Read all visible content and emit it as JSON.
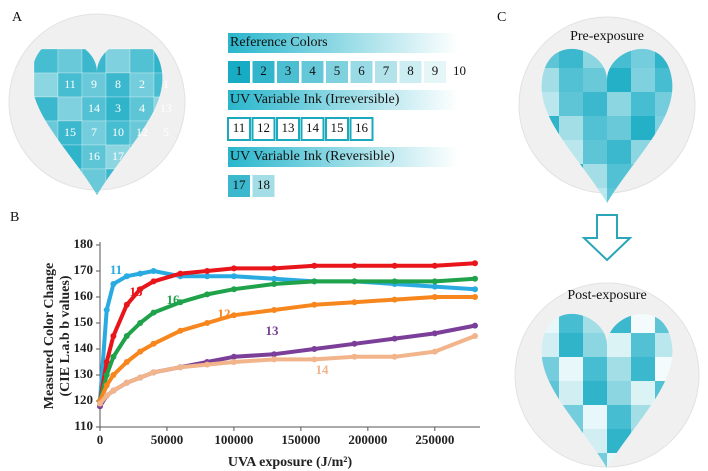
{
  "panel_a": {
    "label": "A",
    "heart_cells": [
      {
        "text": "11",
        "col": 0,
        "row": 0
      },
      {
        "text": "9",
        "col": 1,
        "row": 0
      },
      {
        "text": "8",
        "col": 2,
        "row": 0
      },
      {
        "text": "2",
        "col": 3,
        "row": 0
      },
      {
        "text": "1",
        "col": 4,
        "row": 0
      },
      {
        "text": "14",
        "col": 1,
        "row": 1
      },
      {
        "text": "3",
        "col": 2,
        "row": 1
      },
      {
        "text": "4",
        "col": 3,
        "row": 1
      },
      {
        "text": "13",
        "col": 4,
        "row": 1
      },
      {
        "text": "15",
        "col": 0,
        "row": 2
      },
      {
        "text": "7",
        "col": 1,
        "row": 2
      },
      {
        "text": "10",
        "col": 2,
        "row": 2
      },
      {
        "text": "12",
        "col": 3,
        "row": 2
      },
      {
        "text": "5",
        "col": 4,
        "row": 2
      },
      {
        "text": "16",
        "col": 1,
        "row": 3
      },
      {
        "text": "17",
        "col": 2,
        "row": 3
      }
    ],
    "groups": [
      {
        "title": "Reference Colors",
        "items": [
          "1",
          "2",
          "3",
          "4",
          "5",
          "6",
          "7",
          "8",
          "9",
          "10"
        ]
      },
      {
        "title": "UV Variable Ink (Irreversible)",
        "items": [
          "11",
          "12",
          "13",
          "14",
          "15",
          "16"
        ]
      },
      {
        "title": "UV Variable Ink (Reversible)",
        "items": [
          "17",
          "18"
        ]
      }
    ]
  },
  "panel_b": {
    "label": "B"
  },
  "chart_data": {
    "type": "scatter",
    "y_label": [
      "Measured Color Change",
      "(CIE L.a.b b values)"
    ],
    "x_label": "UVA exposure (J/m²)",
    "x": [
      0,
      5000,
      10000,
      20000,
      30000,
      40000,
      60000,
      80000,
      100000,
      130000,
      160000,
      190000,
      220000,
      250000,
      280000
    ],
    "series": [
      {
        "name": "11",
        "color": "#29abe2",
        "values": [
          120,
          155,
          165,
          168,
          169,
          170,
          168,
          168,
          168,
          167,
          166,
          166,
          165,
          164,
          163
        ]
      },
      {
        "name": "15",
        "color": "#e8151b",
        "values": [
          120,
          135,
          145,
          157,
          163,
          166,
          169,
          170,
          171,
          171,
          172,
          172,
          172,
          172,
          173
        ]
      },
      {
        "name": "16",
        "color": "#1fa24a",
        "values": [
          120,
          130,
          137,
          145,
          150,
          154,
          158,
          161,
          163,
          165,
          166,
          166,
          166,
          166,
          167
        ]
      },
      {
        "name": "12",
        "color": "#f7861e",
        "values": [
          120,
          126,
          130,
          135,
          139,
          142,
          147,
          150,
          153,
          155,
          157,
          158,
          159,
          160,
          160
        ]
      },
      {
        "name": "13",
        "color": "#7b3f99",
        "values": [
          118,
          122,
          124,
          127,
          129,
          131,
          133,
          135,
          137,
          138,
          140,
          142,
          144,
          146,
          149
        ]
      },
      {
        "name": "14",
        "color": "#f2b48a",
        "values": [
          119,
          122,
          124,
          127,
          129,
          131,
          133,
          134,
          135,
          136,
          136,
          137,
          137,
          139,
          145
        ]
      }
    ],
    "xlim": [
      0,
      280000
    ],
    "xticks": [
      0,
      50000,
      100000,
      150000,
      200000,
      250000
    ],
    "ylim": [
      110,
      180
    ],
    "yticks": [
      110,
      120,
      130,
      140,
      150,
      160,
      170,
      180
    ]
  },
  "panel_c": {
    "label": "C",
    "pre": "Pre-exposure",
    "post": "Post-exposure"
  }
}
